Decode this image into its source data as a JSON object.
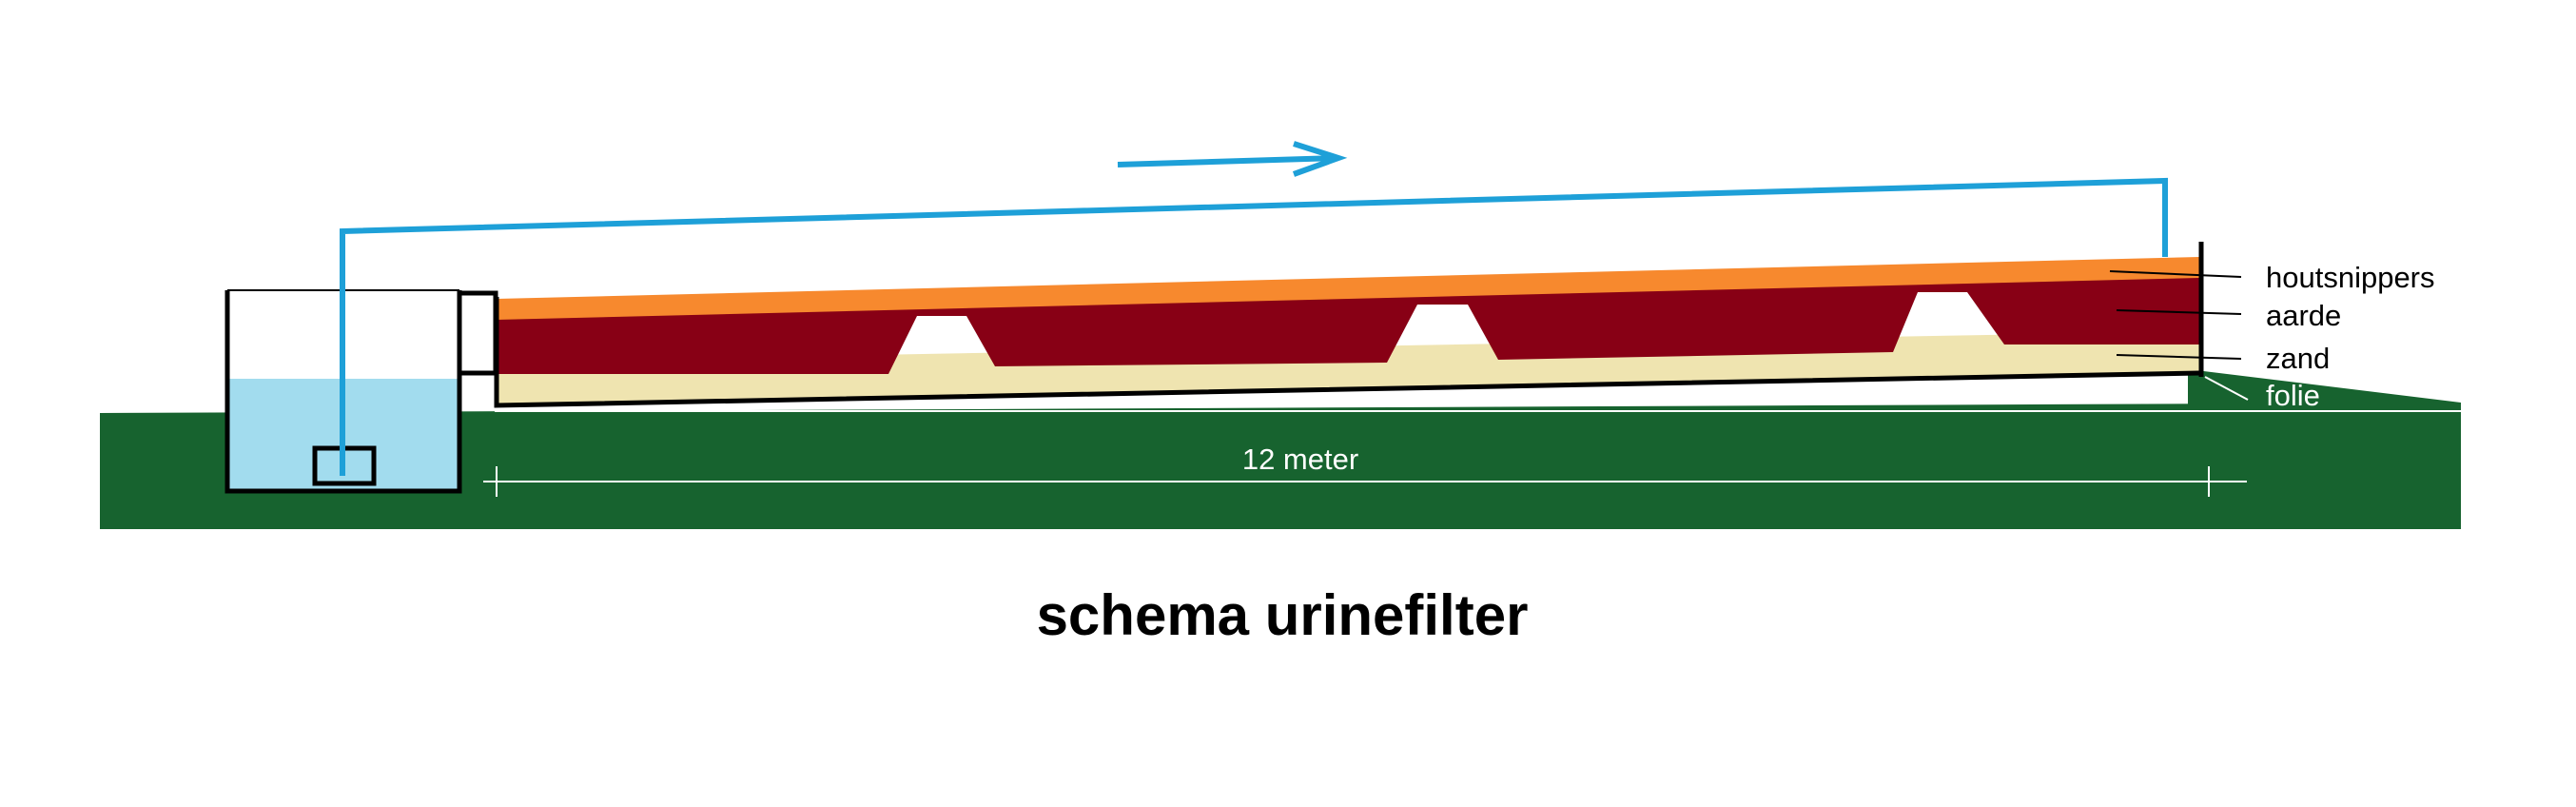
{
  "title": "schema urinefilter",
  "labels": {
    "wood_chips": "houtsnippers",
    "soil": "aarde",
    "sand": "zand",
    "foil": "folie"
  },
  "dimension": {
    "text": "12 meter"
  },
  "colors": {
    "ground": "#17632F",
    "water": "#A2DCEE",
    "pipe": "#1EA0D8",
    "wood_chips": "#F7892E",
    "soil": "#880015",
    "sand": "#EFE4B0",
    "outline": "#000000",
    "background": "#FFFFFF"
  }
}
